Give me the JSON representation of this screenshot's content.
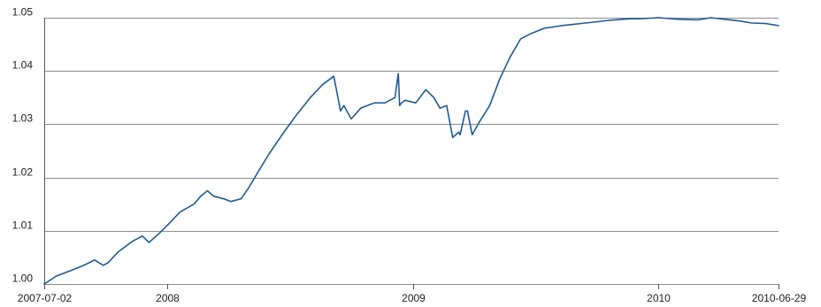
{
  "chart_data": {
    "type": "line",
    "title": "",
    "xlabel": "",
    "ylabel": "",
    "xlim": [
      "2007-07-02",
      "2010-06-29"
    ],
    "ylim": [
      1.0,
      1.05
    ],
    "grid": true,
    "x_ticks": [
      {
        "date": "2007-07-02",
        "label": "2007-07-02"
      },
      {
        "date": "2008-01-01",
        "label": "2008"
      },
      {
        "date": "2009-01-01",
        "label": "2009"
      },
      {
        "date": "2010-01-01",
        "label": "2010"
      },
      {
        "date": "2010-06-29",
        "label": "2010-06-29"
      }
    ],
    "y_ticks": [
      {
        "value": 1.0,
        "label": "1.00"
      },
      {
        "value": 1.01,
        "label": "1.01"
      },
      {
        "value": 1.02,
        "label": "1.02"
      },
      {
        "value": 1.03,
        "label": "1.03"
      },
      {
        "value": 1.04,
        "label": "1.04"
      },
      {
        "value": 1.05,
        "label": "1.05"
      }
    ],
    "colors": {
      "series": "#1f5a96",
      "grid": "#8c8c8c"
    },
    "series": [
      {
        "x": [
          "2007-07-02",
          "2007-07-20",
          "2007-08-10",
          "2007-08-30",
          "2007-09-15",
          "2007-09-28",
          "2007-10-05",
          "2007-10-20",
          "2007-11-10",
          "2007-11-25",
          "2007-12-05",
          "2007-12-20",
          "2008-01-05",
          "2008-01-20",
          "2008-02-10",
          "2008-02-20",
          "2008-03-01",
          "2008-03-10",
          "2008-03-25",
          "2008-04-05",
          "2008-04-20",
          "2008-05-01",
          "2008-05-15",
          "2008-06-01",
          "2008-06-20",
          "2008-07-10",
          "2008-08-01",
          "2008-08-20",
          "2008-09-05",
          "2008-09-15",
          "2008-09-20",
          "2008-10-01",
          "2008-10-15",
          "2008-10-25",
          "2008-11-05",
          "2008-11-20",
          "2008-12-05",
          "2008-12-10",
          "2008-12-12",
          "2008-12-15",
          "2008-12-20",
          "2009-01-05",
          "2009-01-20",
          "2009-02-01",
          "2009-02-10",
          "2009-02-20",
          "2009-03-01",
          "2009-03-10",
          "2009-03-12",
          "2009-03-20",
          "2009-03-23",
          "2009-03-30",
          "2009-04-10",
          "2009-04-25",
          "2009-05-10",
          "2009-05-25",
          "2009-06-10",
          "2009-06-25",
          "2009-07-15",
          "2009-08-10",
          "2009-09-15",
          "2009-10-20",
          "2009-11-20",
          "2009-12-05",
          "2010-01-01",
          "2010-02-01",
          "2010-03-01",
          "2010-03-20",
          "2010-04-10",
          "2010-05-01",
          "2010-05-20",
          "2010-06-10",
          "2010-06-29"
        ],
        "values": [
          1.0,
          1.0015,
          1.0025,
          1.0035,
          1.0045,
          1.0035,
          1.004,
          1.006,
          1.008,
          1.009,
          1.0078,
          1.0095,
          1.0115,
          1.0135,
          1.015,
          1.0165,
          1.0175,
          1.0165,
          1.016,
          1.0155,
          1.016,
          1.018,
          1.021,
          1.0245,
          1.028,
          1.0315,
          1.035,
          1.0375,
          1.039,
          1.0325,
          1.0335,
          1.031,
          1.033,
          1.0335,
          1.034,
          1.034,
          1.035,
          1.0395,
          1.0335,
          1.034,
          1.0345,
          1.034,
          1.0365,
          1.035,
          1.033,
          1.0335,
          1.0275,
          1.0285,
          1.028,
          1.0325,
          1.0325,
          1.028,
          1.0305,
          1.0335,
          1.0385,
          1.0425,
          1.046,
          1.047,
          1.048,
          1.0485,
          1.049,
          1.0495,
          1.0498,
          1.0498,
          1.05,
          1.0497,
          1.0496,
          1.05,
          1.0497,
          1.0494,
          1.049,
          1.0489,
          1.0485
        ]
      }
    ]
  }
}
